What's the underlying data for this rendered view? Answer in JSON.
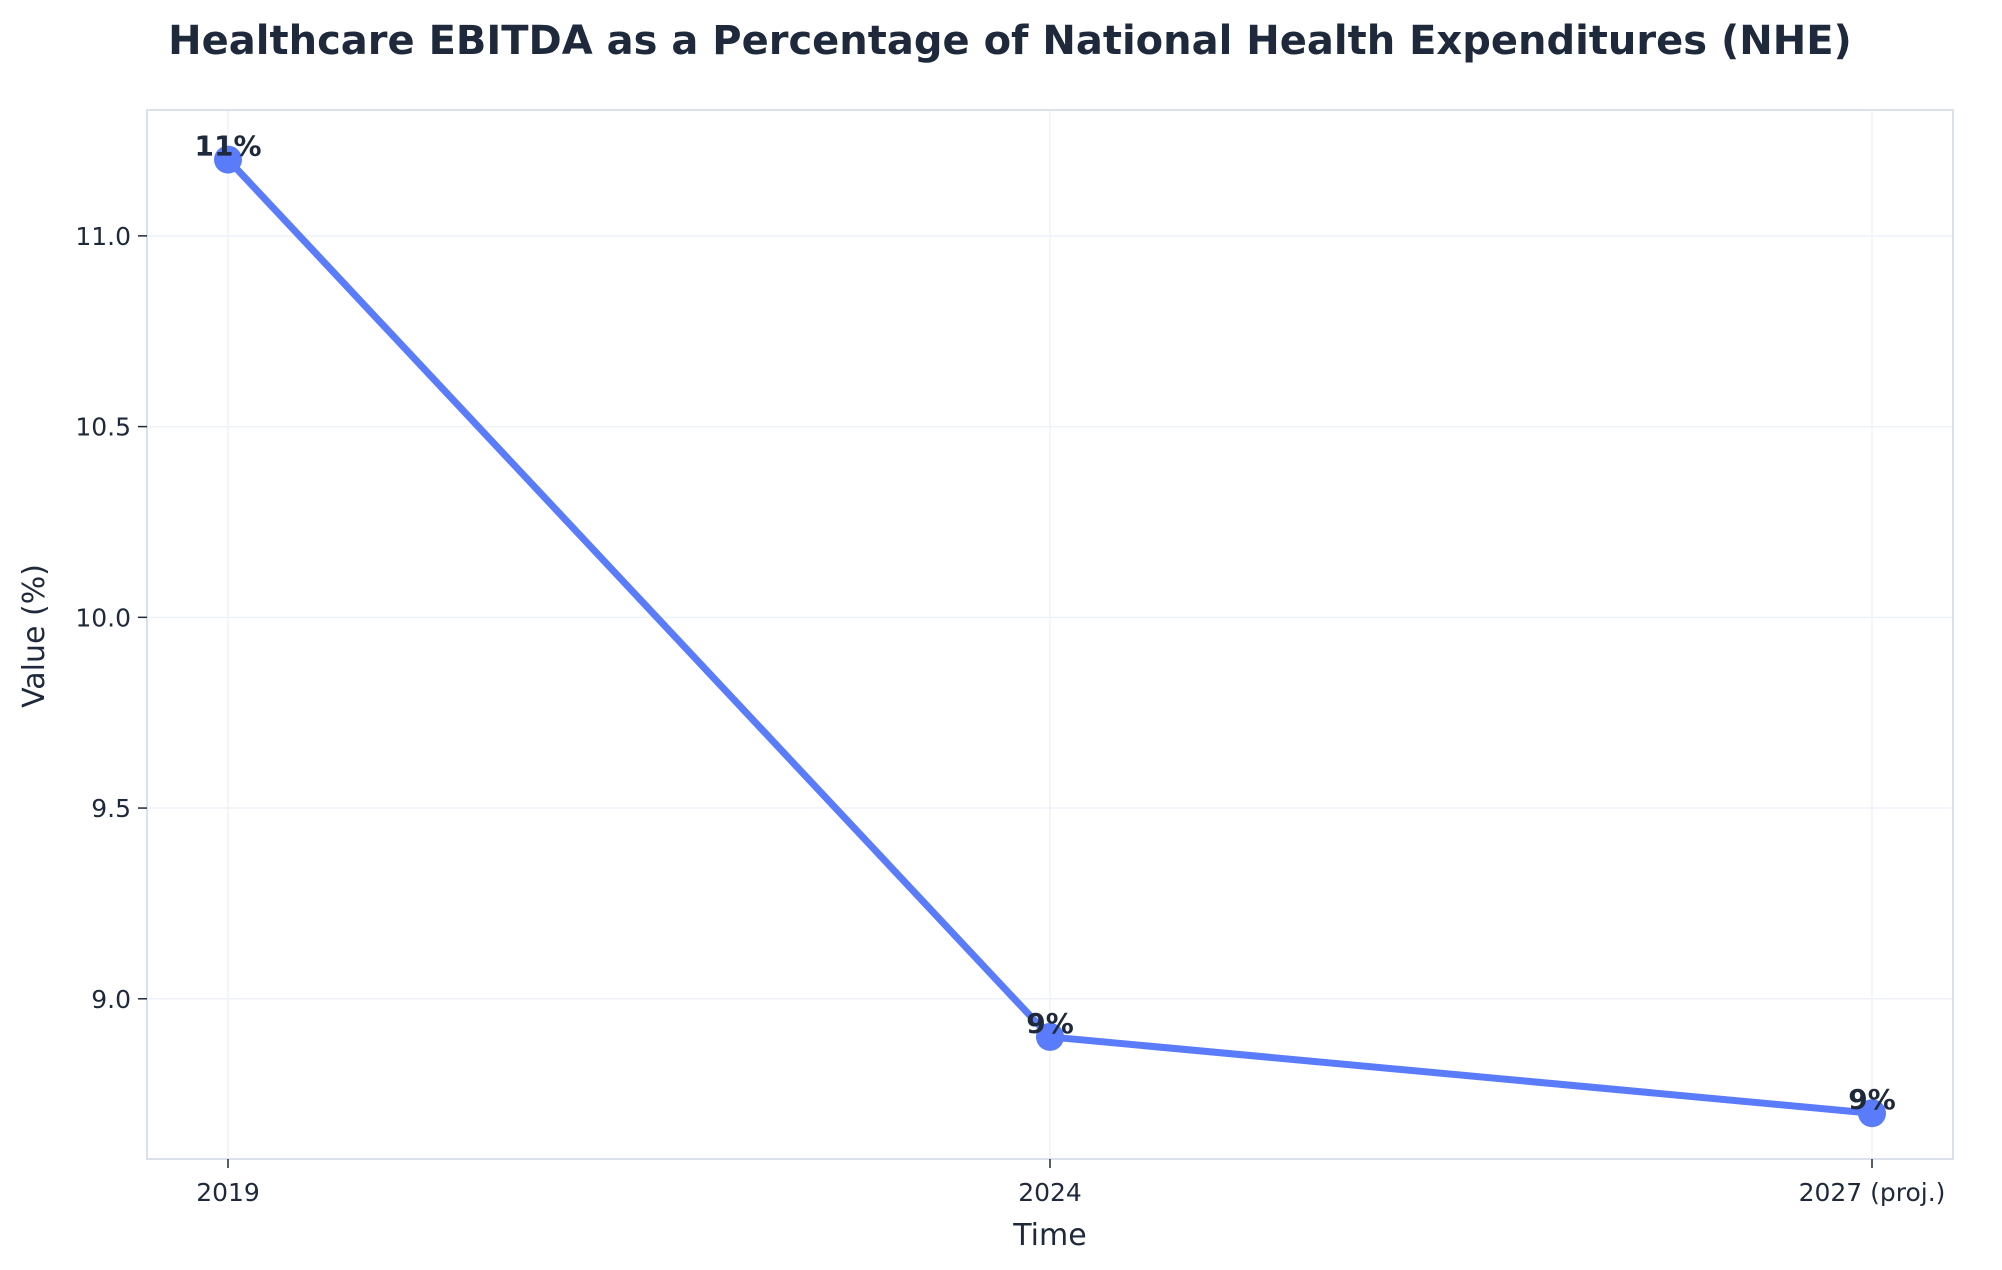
{
  "chart_data": {
    "type": "line",
    "title": "Healthcare EBITDA as a Percentage of National Health Expenditures (NHE)",
    "xlabel": "Time",
    "ylabel": "Value (%)",
    "categories": [
      "2019",
      "2024",
      "2027 (proj.)"
    ],
    "series": [
      {
        "values": [
          11.2,
          8.9,
          8.7
        ],
        "labels": [
          "11%",
          "9%",
          "9%"
        ],
        "color": "#5b7cfa"
      }
    ],
    "ylim": [
      8.58,
      11.33
    ],
    "yticks": [
      9.0,
      9.5,
      10.0,
      10.5,
      11.0
    ],
    "ytick_labels": [
      "9.0",
      "9.5",
      "10.0",
      "10.5",
      "11.0"
    ],
    "grid": true,
    "legend": "none",
    "colors": {
      "text": "#1e293b",
      "grid": "#eef2f7",
      "spine": "#dbe1ea",
      "line": "#5b7cfa"
    }
  }
}
